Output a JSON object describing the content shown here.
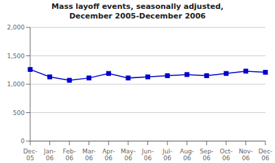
{
  "chart_data": {
    "type": "line",
    "title": "Mass layoff events, seasonally adjusted,\nDecember 2005-December 2006",
    "categories": [
      "Dec-\n05",
      "Jan-\n06",
      "Feb-\n06",
      "Mar-\n06",
      "Apr-\n06",
      "May-\n06",
      "Jun-\n06",
      "Jul-\n06",
      "Aug-\n06",
      "Sep-\n06",
      "Oct-\n06",
      "Nov-\n06",
      "Dec-\n06"
    ],
    "values": [
      1260,
      1130,
      1070,
      1110,
      1190,
      1110,
      1130,
      1150,
      1170,
      1150,
      1190,
      1230,
      1210
    ],
    "color": "#0000CC",
    "marker": "square",
    "ylim": [
      0,
      2000
    ],
    "yticks": [
      0,
      500,
      {
        "value": 1000,
        "label": "1,000"
      },
      {
        "value": 1500,
        "label": "1,500"
      },
      {
        "value": 2000,
        "label": "2,000"
      }
    ],
    "grid": true
  }
}
